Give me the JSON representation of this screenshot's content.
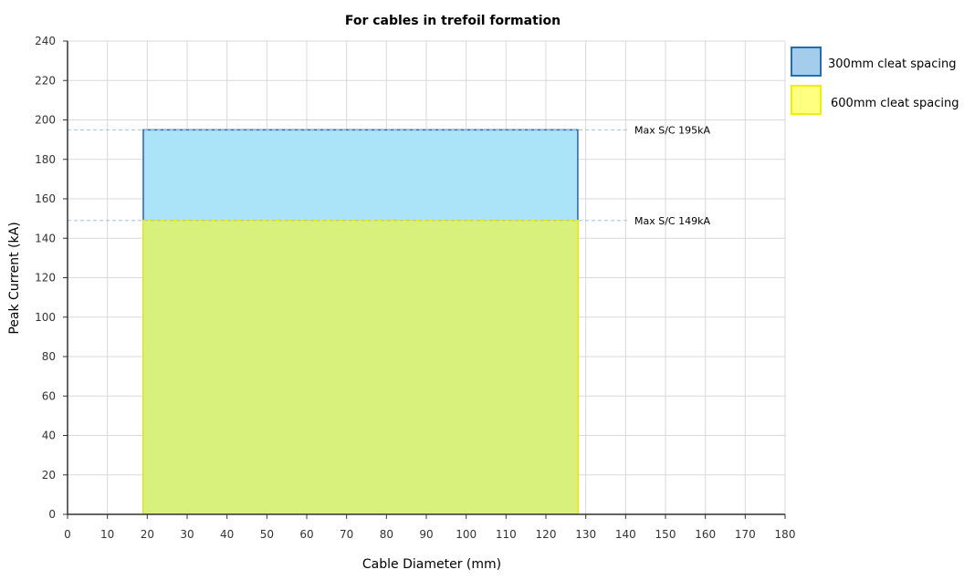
{
  "chart_data": {
    "type": "area",
    "title": "For cables in trefoil formation",
    "xlabel": "Cable Diameter (mm)",
    "ylabel": "Peak Current (kA)",
    "xlim": [
      0,
      180
    ],
    "ylim": [
      0,
      240
    ],
    "x_ticks": [
      0,
      10,
      20,
      30,
      40,
      50,
      60,
      70,
      80,
      90,
      100,
      110,
      120,
      130,
      140,
      150,
      160,
      170,
      180
    ],
    "y_ticks": [
      0,
      20,
      40,
      60,
      80,
      100,
      120,
      140,
      160,
      180,
      200,
      220,
      240
    ],
    "grid": true,
    "legend_position": "top-right",
    "series": [
      {
        "name": "300mm cleat spacing",
        "x_start": 19,
        "x_end": 128,
        "y_max": 195,
        "fill": "#abe4f8",
        "stroke": "#2f5fa8",
        "legend_fill": "#a3cdea",
        "legend_stroke": "#1f6fb2"
      },
      {
        "name": "600mm cleat spacing",
        "x_start": 19,
        "x_end": 128,
        "y_max": 149,
        "fill": "#d8f07c",
        "stroke": "#f0f000",
        "legend_fill": "#ffff80",
        "legend_stroke": "#f0f000"
      }
    ],
    "annotations": [
      {
        "text": "Max S/C 195kA",
        "y": 195
      },
      {
        "text": "Max S/C 149kA",
        "y": 149
      }
    ]
  }
}
